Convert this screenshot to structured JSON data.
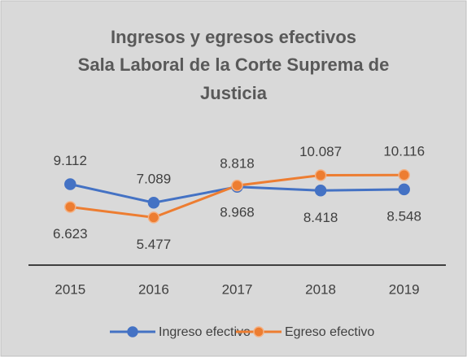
{
  "chart_data": {
    "type": "line",
    "title": [
      "Ingresos y egresos efectivos",
      "Sala Laboral de la Corte Suprema de",
      "Justicia"
    ],
    "categories": [
      "2015",
      "2016",
      "2017",
      "2018",
      "2019"
    ],
    "series": [
      {
        "name": "Ingreso efectivo",
        "color": "#4472c4",
        "values": [
          9112,
          7089,
          8818,
          8418,
          8548
        ],
        "value_labels": [
          "9.112",
          "7.089",
          "8.818",
          "8.418",
          "8.548"
        ]
      },
      {
        "name": "Egreso efectivo",
        "color": "#ed7d31",
        "values": [
          6623,
          5477,
          8968,
          10087,
          10116
        ],
        "value_labels": [
          "6.623",
          "5.477",
          "8.968",
          "10.087",
          "10.116"
        ]
      }
    ],
    "ylim": [
      0,
      12000
    ],
    "legend": "bottom"
  }
}
